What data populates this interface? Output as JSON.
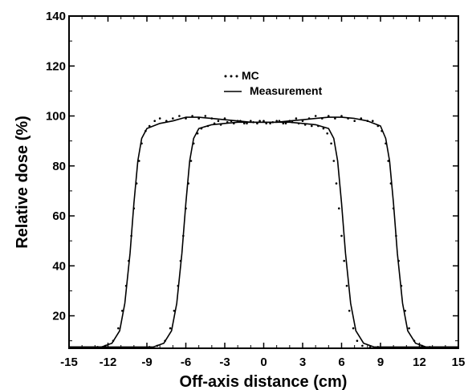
{
  "chart_data": {
    "type": "line",
    "title": "",
    "xlabel": "Off-axis distance (cm)",
    "ylabel": "Relative dose  (%)",
    "xlim": [
      -15,
      15
    ],
    "ylim": [
      7,
      140
    ],
    "xticks": [
      -15,
      -12,
      -9,
      -6,
      -3,
      0,
      3,
      6,
      9,
      12,
      15
    ],
    "yticks": [
      20,
      40,
      60,
      80,
      100,
      120,
      140
    ],
    "grid": false,
    "legend": {
      "position": "top-center",
      "entries": [
        "MC",
        "Measurement"
      ]
    },
    "series": [
      {
        "name": "Measurement",
        "style": "solid",
        "profiles": [
          {
            "x": [
              -15,
              -12.5,
              -11.7,
              -11.1,
              -10.7,
              -10.3,
              -10.0,
              -9.7,
              -9.4,
              -9.0,
              -8.0,
              -7.0,
              -6.0,
              -5.0,
              -4.0,
              -3.0,
              -2.0,
              -1.0,
              0,
              1.0,
              2.0,
              3.0,
              4.0,
              5.0,
              6.0,
              7.0,
              8.0,
              9.0,
              9.4,
              9.7,
              10.0,
              10.3,
              10.7,
              11.1,
              11.7,
              12.5,
              15
            ],
            "y": [
              7.5,
              7.5,
              9,
              14,
              25,
              45,
              65,
              82,
              91,
              95,
              97,
              98,
              99.5,
              99.5,
              99,
              98.5,
              98,
              97.5,
              97.5,
              97.5,
              98,
              98.5,
              99,
              99.5,
              99.5,
              99,
              98,
              96,
              91,
              82,
              65,
              45,
              25,
              14,
              9,
              7.5,
              7.5
            ]
          },
          {
            "x": [
              -15,
              -8.5,
              -7.7,
              -7.1,
              -6.7,
              -6.3,
              -6.0,
              -5.7,
              -5.4,
              -5.0,
              -4.0,
              -3.0,
              -2.0,
              -1.0,
              0,
              1.0,
              2.0,
              3.0,
              4.0,
              5.0,
              5.4,
              5.7,
              6.0,
              6.3,
              6.7,
              7.1,
              7.7,
              8.5,
              15
            ],
            "y": [
              7.5,
              7.5,
              9,
              14,
              25,
              45,
              65,
              82,
              91,
              95,
              96.5,
              97,
              97.5,
              97.5,
              97.5,
              97.5,
              97.5,
              97,
              96.5,
              95,
              91,
              82,
              65,
              45,
              25,
              14,
              9,
              7.5,
              7.5
            ]
          }
        ]
      },
      {
        "name": "MC",
        "style": "dotted",
        "profiles": [
          {
            "x": [
              -12.8,
              -12.2,
              -11.6,
              -11.2,
              -10.9,
              -10.6,
              -10.4,
              -10.2,
              -10.0,
              -9.8,
              -9.6,
              -9.4,
              -9.1,
              -8.8,
              -8.4,
              -8.0,
              -7.5,
              -7.0,
              -6.5,
              -6.0,
              -5.5,
              -5.0,
              -4.5,
              -4.0,
              -3.5,
              -3.0,
              -2.5,
              -2.0,
              -1.5,
              -1.0,
              -0.5,
              0,
              0.5,
              1.0,
              1.5,
              2.0,
              2.5,
              3.0,
              3.5,
              4.0,
              4.5,
              5.0,
              5.5,
              6.0,
              6.5,
              7.0,
              7.5,
              8.0,
              8.4,
              8.8,
              9.1,
              9.4,
              9.6,
              9.8,
              10.0,
              10.2,
              10.4,
              10.6,
              10.9,
              11.2,
              11.6,
              12.2,
              12.8
            ],
            "y": [
              7.5,
              8,
              10,
              15,
              22,
              32,
              42,
              52,
              63,
              73,
              82,
              89,
              94,
              96,
              98,
              99,
              98,
              99,
              100,
              99,
              100,
              99,
              100,
              99,
              98,
              99,
              98,
              98,
              97,
              98,
              97,
              98,
              97,
              98,
              97,
              98,
              99,
              98,
              99,
              100,
              99,
              100,
              99,
              100,
              99,
              98,
              99,
              98,
              98,
              96,
              94,
              89,
              82,
              73,
              63,
              52,
              42,
              32,
              22,
              15,
              10,
              8,
              7.5
            ]
          },
          {
            "x": [
              -8.8,
              -8.2,
              -7.6,
              -7.2,
              -6.9,
              -6.6,
              -6.4,
              -6.2,
              -6.0,
              -5.8,
              -5.6,
              -5.4,
              -5.1,
              -4.8,
              -4.3,
              -3.8,
              -3.3,
              -2.8,
              -2.3,
              -1.8,
              -1.3,
              -0.8,
              -0.3,
              0.2,
              0.7,
              1.2,
              1.7,
              2.2,
              2.7,
              3.2,
              3.7,
              4.2,
              4.6,
              4.9,
              5.2,
              5.4,
              5.6,
              5.8,
              6.0,
              6.2,
              6.4,
              6.6,
              6.9,
              7.2,
              7.6,
              8.2,
              8.8
            ],
            "y": [
              7.5,
              8,
              10,
              15,
              22,
              32,
              42,
              52,
              63,
              73,
              82,
              89,
              93,
              95,
              96,
              97,
              96.5,
              97.5,
              97,
              98,
              97,
              97.5,
              98,
              97,
              97.5,
              98,
              97,
              97.5,
              97,
              96.5,
              96,
              96,
              95,
              93,
              89,
              82,
              73,
              63,
              52,
              42,
              32,
              22,
              15,
              10,
              8,
              7.5,
              7.5
            ]
          }
        ]
      }
    ]
  }
}
